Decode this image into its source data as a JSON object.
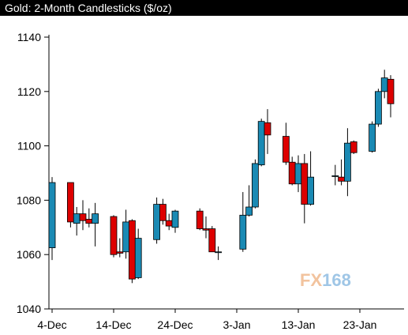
{
  "chart_data": {
    "type": "candlestick",
    "title": "Gold: 2-Month Candlesticks ($/oz)",
    "xlabel": "",
    "ylabel": "",
    "ylim": [
      1040,
      1145
    ],
    "yticks": [
      1040,
      1060,
      1080,
      1100,
      1120,
      1140
    ],
    "xticks": [
      "4-Dec",
      "14-Dec",
      "24-Dec",
      "3-Jan",
      "13-Jan",
      "23-Jan"
    ],
    "grid": false,
    "colors": {
      "up": "#1a8ab4",
      "down": "#dd0000",
      "wick": "#000000"
    },
    "candles": [
      {
        "date": "4-Dec",
        "open": 1062.5,
        "high": 1088.5,
        "low": 1058.0,
        "close": 1086.5
      },
      {
        "date": "7-Dec",
        "open": 1086.5,
        "high": 1086.5,
        "low": 1070.0,
        "close": 1072.0
      },
      {
        "date": "8-Dec",
        "open": 1071.5,
        "high": 1077.5,
        "low": 1067.0,
        "close": 1075.0
      },
      {
        "date": "9-Dec",
        "open": 1075.0,
        "high": 1080.0,
        "low": 1069.0,
        "close": 1072.5
      },
      {
        "date": "10-Dec",
        "open": 1073.0,
        "high": 1077.0,
        "low": 1070.0,
        "close": 1071.5
      },
      {
        "date": "11-Dec",
        "open": 1071.5,
        "high": 1079.0,
        "low": 1063.0,
        "close": 1075.0
      },
      {
        "date": "14-Dec",
        "open": 1074.0,
        "high": 1074.5,
        "low": 1059.0,
        "close": 1060.0
      },
      {
        "date": "15-Dec",
        "open": 1061.0,
        "high": 1066.0,
        "low": 1059.0,
        "close": 1060.5
      },
      {
        "date": "16-Dec",
        "open": 1061.0,
        "high": 1076.5,
        "low": 1058.5,
        "close": 1072.0
      },
      {
        "date": "17-Dec",
        "open": 1072.5,
        "high": 1073.0,
        "low": 1049.5,
        "close": 1051.0
      },
      {
        "date": "18-Dec",
        "open": 1051.5,
        "high": 1069.5,
        "low": 1051.0,
        "close": 1066.0
      },
      {
        "date": "21-Dec",
        "open": 1065.5,
        "high": 1081.0,
        "low": 1064.0,
        "close": 1078.5
      },
      {
        "date": "22-Dec",
        "open": 1078.5,
        "high": 1080.5,
        "low": 1071.0,
        "close": 1072.5
      },
      {
        "date": "23-Dec",
        "open": 1072.5,
        "high": 1075.0,
        "low": 1069.0,
        "close": 1070.5
      },
      {
        "date": "24-Dec",
        "open": 1070.0,
        "high": 1076.5,
        "low": 1068.0,
        "close": 1076.0
      },
      {
        "date": "28-Dec",
        "open": 1076.0,
        "high": 1077.0,
        "low": 1069.0,
        "close": 1069.5
      },
      {
        "date": "29-Dec",
        "open": 1069.5,
        "high": 1074.0,
        "low": 1066.0,
        "close": 1069.0
      },
      {
        "date": "30-Dec",
        "open": 1069.5,
        "high": 1070.5,
        "low": 1061.0,
        "close": 1061.0
      },
      {
        "date": "31-Dec",
        "open": 1061.0,
        "high": 1063.0,
        "low": 1058.0,
        "close": 1061.0
      },
      {
        "date": "4-Jan",
        "open": 1062.0,
        "high": 1083.0,
        "low": 1061.0,
        "close": 1074.5
      },
      {
        "date": "5-Jan",
        "open": 1074.5,
        "high": 1085.5,
        "low": 1074.0,
        "close": 1077.5
      },
      {
        "date": "6-Jan",
        "open": 1077.5,
        "high": 1095.0,
        "low": 1077.0,
        "close": 1093.5
      },
      {
        "date": "7-Jan",
        "open": 1093.0,
        "high": 1110.0,
        "low": 1092.5,
        "close": 1109.0
      },
      {
        "date": "8-Jan",
        "open": 1108.5,
        "high": 1113.5,
        "low": 1097.0,
        "close": 1104.0
      },
      {
        "date": "11-Jan",
        "open": 1103.5,
        "high": 1108.5,
        "low": 1093.0,
        "close": 1094.0
      },
      {
        "date": "12-Jan",
        "open": 1094.0,
        "high": 1096.0,
        "low": 1085.5,
        "close": 1086.0
      },
      {
        "date": "13-Jan",
        "open": 1086.0,
        "high": 1096.5,
        "low": 1083.0,
        "close": 1093.5
      },
      {
        "date": "14-Jan",
        "open": 1093.5,
        "high": 1097.0,
        "low": 1071.5,
        "close": 1078.5
      },
      {
        "date": "15-Jan",
        "open": 1078.5,
        "high": 1098.0,
        "low": 1078.0,
        "close": 1088.5
      },
      {
        "date": "19-Jan",
        "open": 1089.0,
        "high": 1093.0,
        "low": 1085.5,
        "close": 1089.0
      },
      {
        "date": "20-Jan",
        "open": 1088.5,
        "high": 1095.0,
        "low": 1085.5,
        "close": 1087.0
      },
      {
        "date": "21-Jan",
        "open": 1087.0,
        "high": 1106.5,
        "low": 1081.5,
        "close": 1101.0
      },
      {
        "date": "22-Jan",
        "open": 1101.5,
        "high": 1102.0,
        "low": 1097.0,
        "close": 1097.5
      },
      {
        "date": "25-Jan",
        "open": 1098.0,
        "high": 1109.0,
        "low": 1097.5,
        "close": 1108.0
      },
      {
        "date": "26-Jan",
        "open": 1108.0,
        "high": 1121.0,
        "low": 1107.0,
        "close": 1120.0
      },
      {
        "date": "27-Jan",
        "open": 1120.0,
        "high": 1128.0,
        "low": 1117.5,
        "close": 1125.0
      },
      {
        "date": "28-Jan",
        "open": 1124.5,
        "high": 1126.0,
        "low": 1110.5,
        "close": 1115.5
      }
    ]
  },
  "watermark": {
    "text_a": "FX",
    "text_b": "168",
    "color_a": "#f2c39e",
    "color_b": "#9fc6e6"
  }
}
